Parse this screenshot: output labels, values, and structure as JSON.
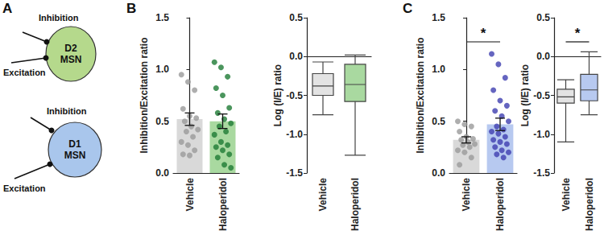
{
  "diagram": {
    "label": "A",
    "cells": [
      {
        "name": "D2\nMSN",
        "color": "#b5d98c",
        "inputs": [
          "Inhibition",
          "Excitation"
        ]
      },
      {
        "name": "D1\nMSN",
        "color": "#a9c6ec",
        "inputs": [
          "Inhibition",
          "Excitation"
        ]
      }
    ]
  },
  "chart_data": [
    {
      "type": "bar",
      "panel_label": "B",
      "ylabel": "Inhibition/Excitation ratio",
      "categories": [
        "Vehicle",
        "Haloperidol"
      ],
      "values": [
        0.52,
        0.5
      ],
      "errors": [
        0.06,
        0.07
      ],
      "colors": [
        "#d9d9d9",
        "#a9d9a0"
      ],
      "points": [
        {
          "color": "#9a9a9a",
          "values": [
            0.95,
            0.88,
            0.8,
            0.62,
            0.55,
            0.53,
            0.5,
            0.45,
            0.42,
            0.4,
            0.35,
            0.3,
            0.27,
            0.22,
            0.18,
            0.17
          ]
        },
        {
          "color": "#1e7b34",
          "values": [
            1.07,
            1.02,
            0.93,
            0.82,
            0.75,
            0.63,
            0.58,
            0.52,
            0.48,
            0.45,
            0.4,
            0.37,
            0.3,
            0.27,
            0.25,
            0.22,
            0.18,
            0.15,
            0.08,
            0.05
          ]
        }
      ],
      "ylim": [
        0,
        1.5
      ],
      "yticks": [
        {
          "value": 0,
          "label": "0.0"
        },
        {
          "value": 0.5,
          "label": "0.5"
        },
        {
          "value": 1,
          "label": "1.0"
        },
        {
          "value": 1.5,
          "label": "1.5"
        }
      ]
    },
    {
      "type": "boxplot",
      "ylabel": "Log (I/E) ratio",
      "categories": [
        "Vehicle",
        "Haloperidol"
      ],
      "boxes": [
        [
          -0.75,
          -0.5,
          -0.38,
          -0.22,
          -0.07
        ],
        [
          -1.27,
          -0.58,
          -0.36,
          -0.1,
          0.02
        ]
      ],
      "colors": [
        "#e3e3e3",
        "#a9d9a0"
      ],
      "ylim": [
        -1.5,
        0.5
      ],
      "yticks": [
        {
          "value": -1.5,
          "label": "-1.5"
        },
        {
          "value": -1,
          "label": "-1.0"
        },
        {
          "value": -0.5,
          "label": "-0.5"
        },
        {
          "value": 0,
          "label": "0.0"
        },
        {
          "value": 0.5,
          "label": "0.5"
        }
      ]
    },
    {
      "type": "bar",
      "panel_label": "C",
      "ylabel": "Inhibition/Excitation ratio",
      "categories": [
        "Vehicle",
        "Haloperidol"
      ],
      "values": [
        0.32,
        0.47
      ],
      "errors": [
        0.03,
        0.06
      ],
      "colors": [
        "#d9d9d9",
        "#b7c9f0"
      ],
      "points": [
        {
          "color": "#9a9a9a",
          "values": [
            0.5,
            0.47,
            0.45,
            0.4,
            0.35,
            0.33,
            0.32,
            0.3,
            0.28,
            0.27,
            0.25,
            0.22,
            0.2,
            0.15,
            0.08
          ]
        },
        {
          "color": "#3f3fb0",
          "values": [
            1.15,
            1.05,
            0.92,
            0.8,
            0.7,
            0.65,
            0.6,
            0.55,
            0.5,
            0.45,
            0.42,
            0.4,
            0.38,
            0.35,
            0.32,
            0.3,
            0.28,
            0.25,
            0.22,
            0.2,
            0.18,
            0.15
          ]
        }
      ],
      "annotations": [
        {
          "text": "*",
          "between": [
            "Vehicle",
            "Haloperidol"
          ]
        }
      ],
      "ylim": [
        0,
        1.5
      ],
      "yticks": [
        {
          "value": 0,
          "label": "0.0"
        },
        {
          "value": 0.5,
          "label": "0.5"
        },
        {
          "value": 1,
          "label": "1.0"
        },
        {
          "value": 1.5,
          "label": "1.5"
        }
      ]
    },
    {
      "type": "boxplot",
      "ylabel": "Log (I/E) ratio",
      "categories": [
        "Vehicle",
        "Haloperidol"
      ],
      "boxes": [
        [
          -1.1,
          -0.6,
          -0.52,
          -0.42,
          -0.3
        ],
        [
          -0.75,
          -0.57,
          -0.43,
          -0.23,
          0.06
        ]
      ],
      "colors": [
        "#e3e3e3",
        "#b7c9f0"
      ],
      "annotations": [
        {
          "text": "*",
          "between": [
            "Vehicle",
            "Haloperidol"
          ]
        }
      ],
      "ylim": [
        -1.5,
        0.5
      ],
      "yticks": [
        {
          "value": -1.5,
          "label": "-1.5"
        },
        {
          "value": -1,
          "label": "-1.0"
        },
        {
          "value": -0.5,
          "label": "-0.5"
        },
        {
          "value": 0,
          "label": "0.0"
        },
        {
          "value": 0.5,
          "label": "0.5"
        }
      ]
    }
  ]
}
